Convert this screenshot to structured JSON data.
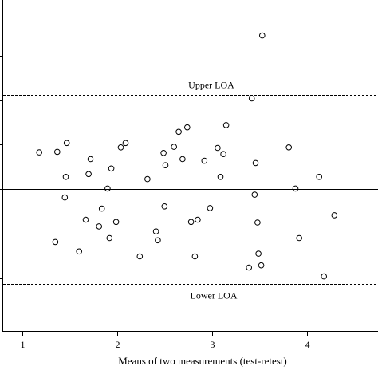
{
  "chart_data": {
    "type": "scatter",
    "xlabel": "Means of two measurements (test-retest)",
    "ylabel": "",
    "title": "",
    "xlim": [
      0.8,
      4.75
    ],
    "ylim": [
      -2.55,
      3.4
    ],
    "x_ticks": [
      1,
      2,
      3,
      4
    ],
    "x_tick_labels": [
      "1",
      "2",
      "3",
      "4"
    ],
    "y_ticks": [
      -1.6,
      -0.8,
      0,
      0.8,
      1.6,
      2.4
    ],
    "mean_difference": 0,
    "upper_loa": 1.7,
    "lower_loa": -1.7,
    "upper_loa_label": "Upper LOA",
    "lower_loa_label": "Lower LOA",
    "grid": false,
    "legend": "none",
    "points": [
      {
        "x": 1.18,
        "y": 0.66
      },
      {
        "x": 1.37,
        "y": 0.67
      },
      {
        "x": 1.47,
        "y": 0.83
      },
      {
        "x": 1.46,
        "y": 0.22
      },
      {
        "x": 1.45,
        "y": -0.15
      },
      {
        "x": 1.35,
        "y": -0.95
      },
      {
        "x": 1.6,
        "y": -1.12
      },
      {
        "x": 1.67,
        "y": -0.55
      },
      {
        "x": 1.7,
        "y": 0.27
      },
      {
        "x": 1.72,
        "y": 0.54
      },
      {
        "x": 1.81,
        "y": -0.67
      },
      {
        "x": 1.84,
        "y": -0.35
      },
      {
        "x": 1.9,
        "y": 0.01
      },
      {
        "x": 1.92,
        "y": -0.88
      },
      {
        "x": 1.94,
        "y": 0.37
      },
      {
        "x": 1.99,
        "y": -0.59
      },
      {
        "x": 2.04,
        "y": 0.75
      },
      {
        "x": 2.09,
        "y": 0.83
      },
      {
        "x": 2.24,
        "y": -1.21
      },
      {
        "x": 2.32,
        "y": 0.18
      },
      {
        "x": 2.41,
        "y": -0.76
      },
      {
        "x": 2.43,
        "y": -0.92
      },
      {
        "x": 2.49,
        "y": 0.65
      },
      {
        "x": 2.5,
        "y": -0.31
      },
      {
        "x": 2.51,
        "y": 0.43
      },
      {
        "x": 2.6,
        "y": 0.76
      },
      {
        "x": 2.65,
        "y": 1.03
      },
      {
        "x": 2.69,
        "y": 0.54
      },
      {
        "x": 2.74,
        "y": 1.11
      },
      {
        "x": 2.78,
        "y": -0.59
      },
      {
        "x": 2.82,
        "y": -1.21
      },
      {
        "x": 2.85,
        "y": -0.55
      },
      {
        "x": 2.92,
        "y": 0.51
      },
      {
        "x": 2.98,
        "y": -0.34
      },
      {
        "x": 3.06,
        "y": 0.74
      },
      {
        "x": 3.09,
        "y": 0.22
      },
      {
        "x": 3.12,
        "y": 0.63
      },
      {
        "x": 3.15,
        "y": 1.15
      },
      {
        "x": 3.39,
        "y": -1.41
      },
      {
        "x": 3.42,
        "y": 1.63
      },
      {
        "x": 3.45,
        "y": -0.1
      },
      {
        "x": 3.46,
        "y": 0.47
      },
      {
        "x": 3.48,
        "y": -0.6
      },
      {
        "x": 3.49,
        "y": -1.16
      },
      {
        "x": 3.52,
        "y": -1.37
      },
      {
        "x": 3.53,
        "y": 2.76
      },
      {
        "x": 3.81,
        "y": 0.75
      },
      {
        "x": 3.88,
        "y": 0.01
      },
      {
        "x": 3.92,
        "y": -0.88
      },
      {
        "x": 4.13,
        "y": 0.22
      },
      {
        "x": 4.18,
        "y": -1.57
      },
      {
        "x": 4.29,
        "y": -0.47
      }
    ]
  }
}
